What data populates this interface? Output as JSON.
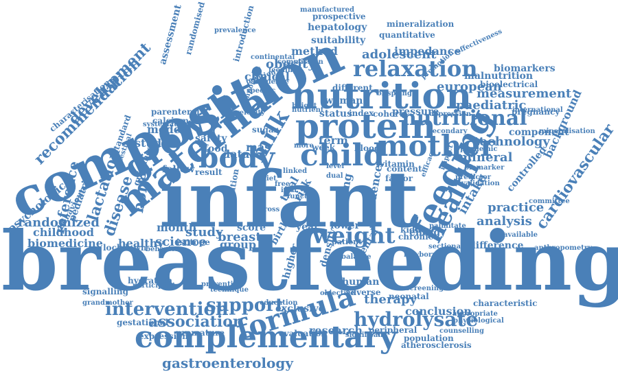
{
  "title": "",
  "accent_color": "#4a80b8",
  "words": [
    "breastfeeding",
    "infant",
    "composition",
    "complementary",
    "maternal",
    "growth",
    "nutrition",
    "protein",
    "body",
    "child",
    "mother",
    "feeding",
    "health",
    "formula",
    "weight",
    "relaxation",
    "nutritional",
    "hydrolysate",
    "intervention",
    "support",
    "association",
    "gastroenterology",
    "recommendation",
    "development",
    "milk",
    "lactation",
    "disease",
    "bone",
    "reference",
    "cardiovascular",
    "randomized",
    "childhood",
    "biomedicine",
    "science",
    "study",
    "breast",
    "group",
    "month",
    "analysis",
    "practice",
    "technology",
    "mineral",
    "measurement",
    "european",
    "paediatric",
    "therapy",
    "conclusion",
    "research",
    "obesity",
    "clinical",
    "adolescent",
    "impedance",
    "method",
    "hepatology",
    "suitability",
    "quantitative",
    "mineralization",
    "prospective",
    "manufactured",
    "biomarkers",
    "malnutrition",
    "bioelectrical",
    "pregnancy",
    "component",
    "controlled",
    "background",
    "difference",
    "anthropometry",
    "exclusive",
    "evaluation",
    "population",
    "atherosclerosis",
    "premature",
    "expression",
    "gestational",
    "hydration",
    "signalling",
    "lockdown",
    "healthy",
    "model",
    "studies",
    "safety",
    "food",
    "data",
    "mas",
    "term",
    "woman",
    "status",
    "index",
    "cohort",
    "pressure",
    "different",
    "psychological",
    "pediatric",
    "behaviour",
    "characterisation",
    "assessment",
    "randomised",
    "introduction",
    "prevalence",
    "parenteral",
    "calcium",
    "follow",
    "result",
    "energy",
    "lower",
    "patient",
    "neonatal",
    "human",
    "adverse",
    "counselling",
    "physiological",
    "appropriate",
    "characteristic",
    "peripheral",
    "significant",
    "committee",
    "available",
    "mineralisation",
    "international",
    "effectiveness",
    "vitamin",
    "content",
    "factor",
    "evidence",
    "intake",
    "risk",
    "density",
    "higher",
    "birth",
    "trial",
    "young",
    "mental",
    "isotope",
    "year",
    "score",
    "week",
    "blood",
    "dual",
    "sugar",
    "chronic",
    "kidney",
    "mediation",
    "specific",
    "influence",
    "position",
    "nutrient",
    "height",
    "more",
    "iron",
    "free",
    "diet",
    "standard",
    "grandmother",
    "participant",
    "behavior",
    "technique",
    "prevention",
    "education",
    "balance",
    "screening",
    "objective",
    "newborn",
    "sectional",
    "palmitate",
    "predictor",
    "validation",
    "impact",
    "efficacy",
    "guidance",
    "pandemic",
    "biomarker",
    "secondary",
    "depression",
    "offspring",
    "promotion",
    "feeding",
    "commission",
    "continental",
    "systematic",
    "intestinal",
    "velocity",
    "important",
    "function",
    "level",
    "linked",
    "cross"
  ]
}
